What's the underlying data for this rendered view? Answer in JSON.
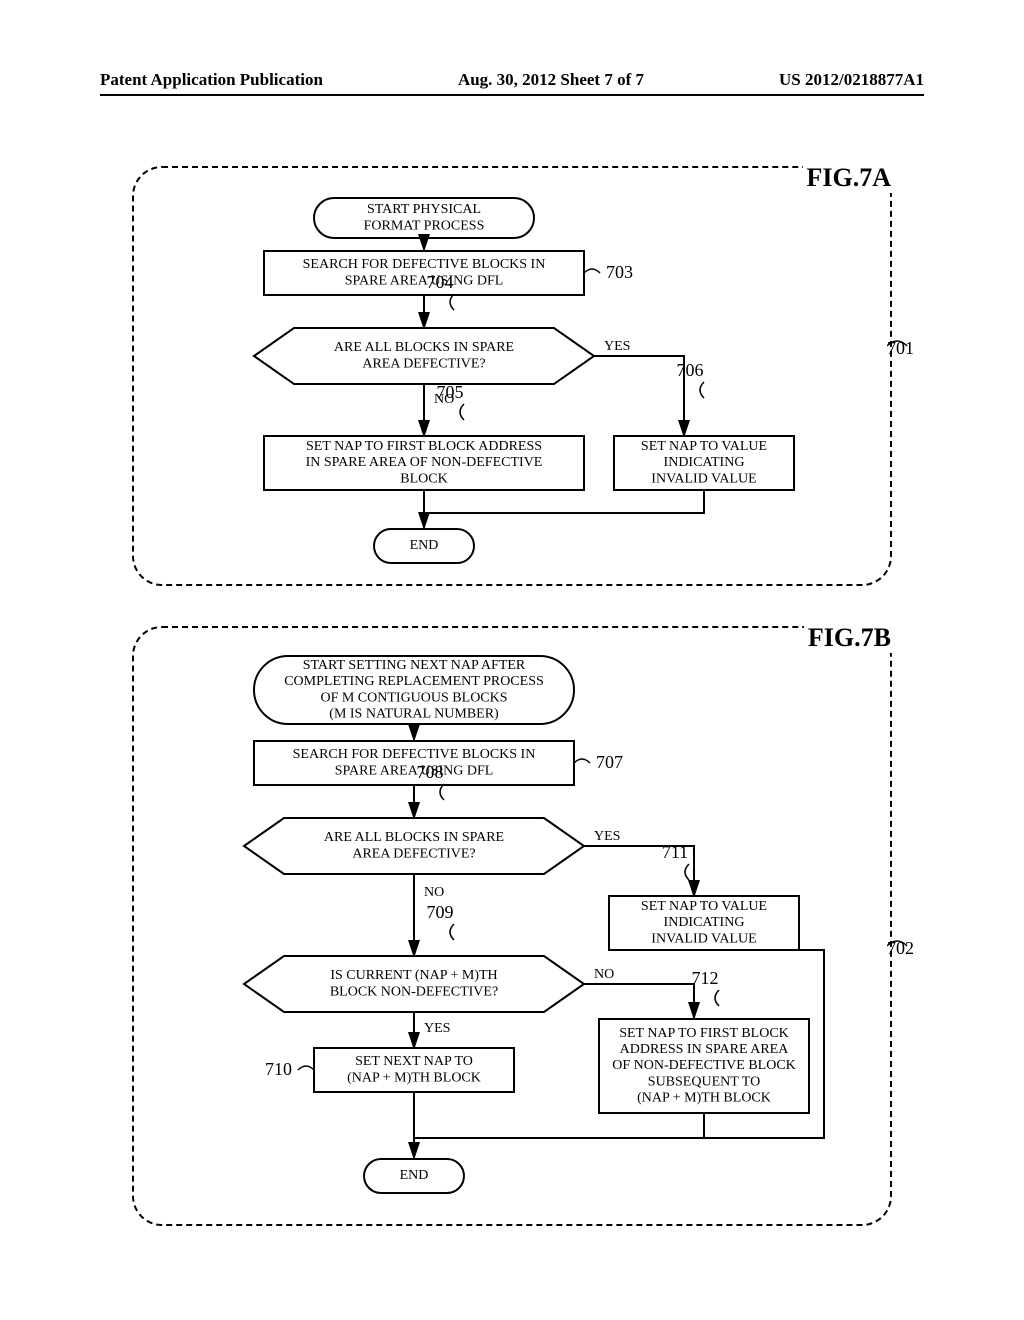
{
  "header": {
    "left": "Patent Application Publication",
    "center": "Aug. 30, 2012  Sheet 7 of 7",
    "right": "US 2012/0218877A1"
  },
  "figA": {
    "title": "FIG.7A",
    "border_ref": "701",
    "nodes": {
      "start": {
        "type": "terminator",
        "lines": [
          "START PHYSICAL",
          "FORMAT PROCESS"
        ]
      },
      "n703": {
        "type": "process",
        "lines": [
          "SEARCH FOR DEFECTIVE BLOCKS IN",
          "SPARE AREA USING DFL"
        ],
        "ref": "703"
      },
      "d704": {
        "type": "decision",
        "lines": [
          "ARE ALL BLOCKS IN SPARE",
          "AREA DEFECTIVE?"
        ],
        "ref": "704"
      },
      "n705": {
        "type": "process",
        "lines": [
          "SET NAP TO FIRST BLOCK ADDRESS",
          "IN SPARE AREA OF NON-DEFECTIVE",
          "BLOCK"
        ],
        "ref": "705"
      },
      "n706": {
        "type": "process",
        "lines": [
          "SET NAP TO VALUE",
          "INDICATING",
          "INVALID VALUE"
        ],
        "ref": "706"
      },
      "end": {
        "type": "terminator",
        "lines": [
          "END"
        ]
      }
    },
    "edge_labels": {
      "yes": "YES",
      "no": "NO"
    }
  },
  "figB": {
    "title": "FIG.7B",
    "border_ref": "702",
    "nodes": {
      "start": {
        "type": "terminator",
        "lines": [
          "START SETTING NEXT NAP AFTER",
          "COMPLETING REPLACEMENT PROCESS",
          "OF M CONTIGUOUS BLOCKS",
          "(M IS NATURAL NUMBER)"
        ]
      },
      "n707": {
        "type": "process",
        "lines": [
          "SEARCH FOR DEFECTIVE BLOCKS IN",
          "SPARE AREA USING DFL"
        ],
        "ref": "707"
      },
      "d708": {
        "type": "decision",
        "lines": [
          "ARE ALL BLOCKS IN SPARE",
          "AREA DEFECTIVE?"
        ],
        "ref": "708"
      },
      "n711": {
        "type": "process",
        "lines": [
          "SET NAP TO VALUE",
          "INDICATING",
          "INVALID VALUE"
        ],
        "ref": "711"
      },
      "d709": {
        "type": "decision",
        "lines": [
          "IS CURRENT (NAP + M)TH",
          "BLOCK NON-DEFECTIVE?"
        ],
        "ref": "709"
      },
      "n710": {
        "type": "process",
        "lines": [
          "SET NEXT NAP TO",
          "(NAP + M)TH BLOCK"
        ],
        "ref": "710"
      },
      "n712": {
        "type": "process",
        "lines": [
          "SET NAP TO FIRST BLOCK",
          "ADDRESS IN SPARE AREA",
          "OF NON-DEFECTIVE BLOCK",
          "SUBSEQUENT TO",
          "(NAP + M)TH BLOCK"
        ],
        "ref": "712"
      },
      "end": {
        "type": "terminator",
        "lines": [
          "END"
        ]
      }
    },
    "edge_labels": {
      "yes": "YES",
      "no": "NO"
    }
  },
  "style": {
    "stroke": "#000000",
    "stroke_width": 2,
    "fill": "#ffffff",
    "font_size": 14,
    "ref_font_size": 18
  }
}
